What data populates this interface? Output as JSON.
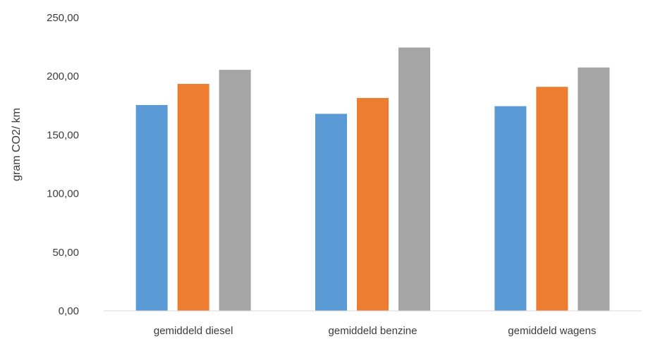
{
  "chart_data": {
    "type": "bar",
    "title": "",
    "xlabel": "",
    "ylabel": "gram CO2/ km",
    "categories": [
      "gemiddeld diesel",
      "gemiddeld benzine",
      "gemiddeld wagens"
    ],
    "series": [
      {
        "color": "#5b9bd5",
        "values": [
          175.5,
          168.0,
          174.5
        ]
      },
      {
        "color": "#ed7d31",
        "values": [
          193.5,
          181.5,
          191.0
        ]
      },
      {
        "color": "#a5a5a5",
        "values": [
          205.5,
          224.5,
          207.5
        ]
      }
    ],
    "ylim": [
      0,
      250
    ],
    "yticks": [
      "0,00",
      "50,00",
      "100,00",
      "150,00",
      "200,00",
      "250,00"
    ],
    "ytick_values": [
      0,
      50,
      100,
      150,
      200,
      250
    ],
    "grid": false,
    "legend": "none"
  }
}
